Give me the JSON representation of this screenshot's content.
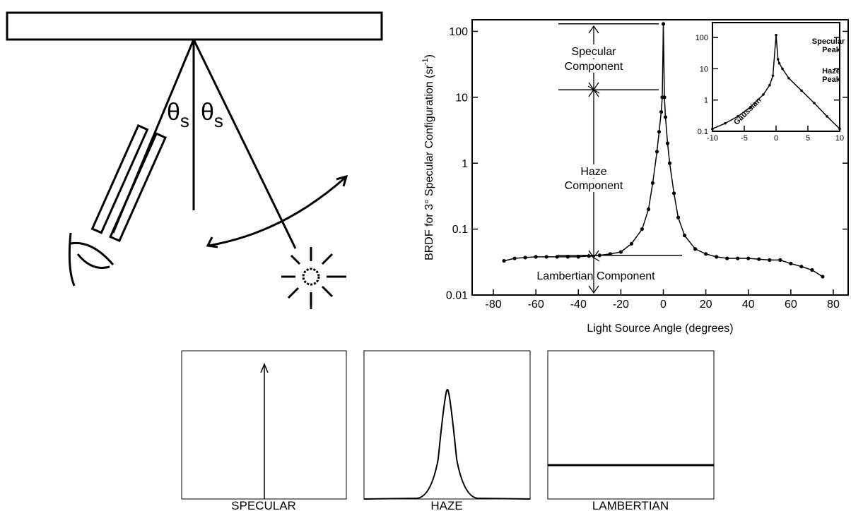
{
  "diagram": {
    "angle_labels": [
      {
        "symbol": "θ",
        "subscript": "s"
      },
      {
        "symbol": "θ",
        "subscript": "s"
      }
    ]
  },
  "chart_data": [
    {
      "type": "line",
      "y_label": "BRDF for 3° Specular Configuration (sr",
      "y_label_superscript": "-1",
      "y_label_suffix": ")",
      "x_label": "Light Source Angle (degrees)",
      "log_y": true,
      "xlim": [
        -90,
        87
      ],
      "ylim": [
        0.01,
        150
      ],
      "xticks": [
        -80,
        -60,
        -40,
        -20,
        0,
        20,
        40,
        60,
        80
      ],
      "yticks": [
        0.01,
        0.1,
        1,
        10,
        100
      ],
      "annotations": [
        [
          "Specular",
          "Component"
        ],
        [
          "Haze",
          "Component"
        ],
        [
          "Lambertian Component"
        ]
      ],
      "reference_levels": [
        130,
        13,
        0.04
      ],
      "series": [
        {
          "color": "#000000",
          "x": [
            -75,
            -70,
            -65,
            -60,
            -55,
            -50,
            -45,
            -40,
            -35,
            -30,
            -25,
            -20,
            -15,
            -10,
            -7,
            -5,
            -3,
            -2,
            -1,
            -0.5,
            0,
            0.5,
            1,
            2,
            3,
            5,
            7,
            10,
            15,
            20,
            25,
            30,
            35,
            40,
            45,
            50,
            55,
            60,
            65,
            70,
            75
          ],
          "values": [
            0.033,
            0.036,
            0.037,
            0.038,
            0.038,
            0.038,
            0.038,
            0.038,
            0.039,
            0.04,
            0.042,
            0.045,
            0.06,
            0.1,
            0.2,
            0.5,
            1.5,
            3,
            6,
            10,
            130,
            10,
            5,
            2,
            1,
            0.35,
            0.15,
            0.08,
            0.05,
            0.042,
            0.038,
            0.036,
            0.036,
            0.036,
            0.035,
            0.034,
            0.034,
            0.03,
            0.027,
            0.024,
            0.019
          ]
        }
      ]
    },
    {
      "type": "line",
      "log_y": true,
      "xlim": [
        -10,
        10
      ],
      "ylim": [
        0.1,
        300
      ],
      "xticks": [
        -10,
        -5,
        0,
        5,
        10
      ],
      "yticks": [
        0.1,
        1,
        10,
        100
      ],
      "annotations": [
        [
          "Specular",
          "Peak"
        ],
        [
          "Haze",
          "Peak"
        ],
        [
          "Gaussian"
        ]
      ],
      "series": [
        {
          "color": "#000000",
          "x": [
            -10,
            -8,
            -6,
            -4,
            -2,
            -1,
            -0.5,
            0,
            0.3,
            0.5,
            1,
            2,
            4,
            6,
            8,
            10
          ],
          "values": [
            0.12,
            0.18,
            0.3,
            0.6,
            1.5,
            3,
            6,
            120,
            20,
            15,
            10,
            5,
            2,
            0.8,
            0.3,
            0.12
          ]
        }
      ]
    }
  ],
  "panels": {
    "labels": [
      "SPECULAR",
      "HAZE",
      "LAMBERTIAN"
    ]
  }
}
